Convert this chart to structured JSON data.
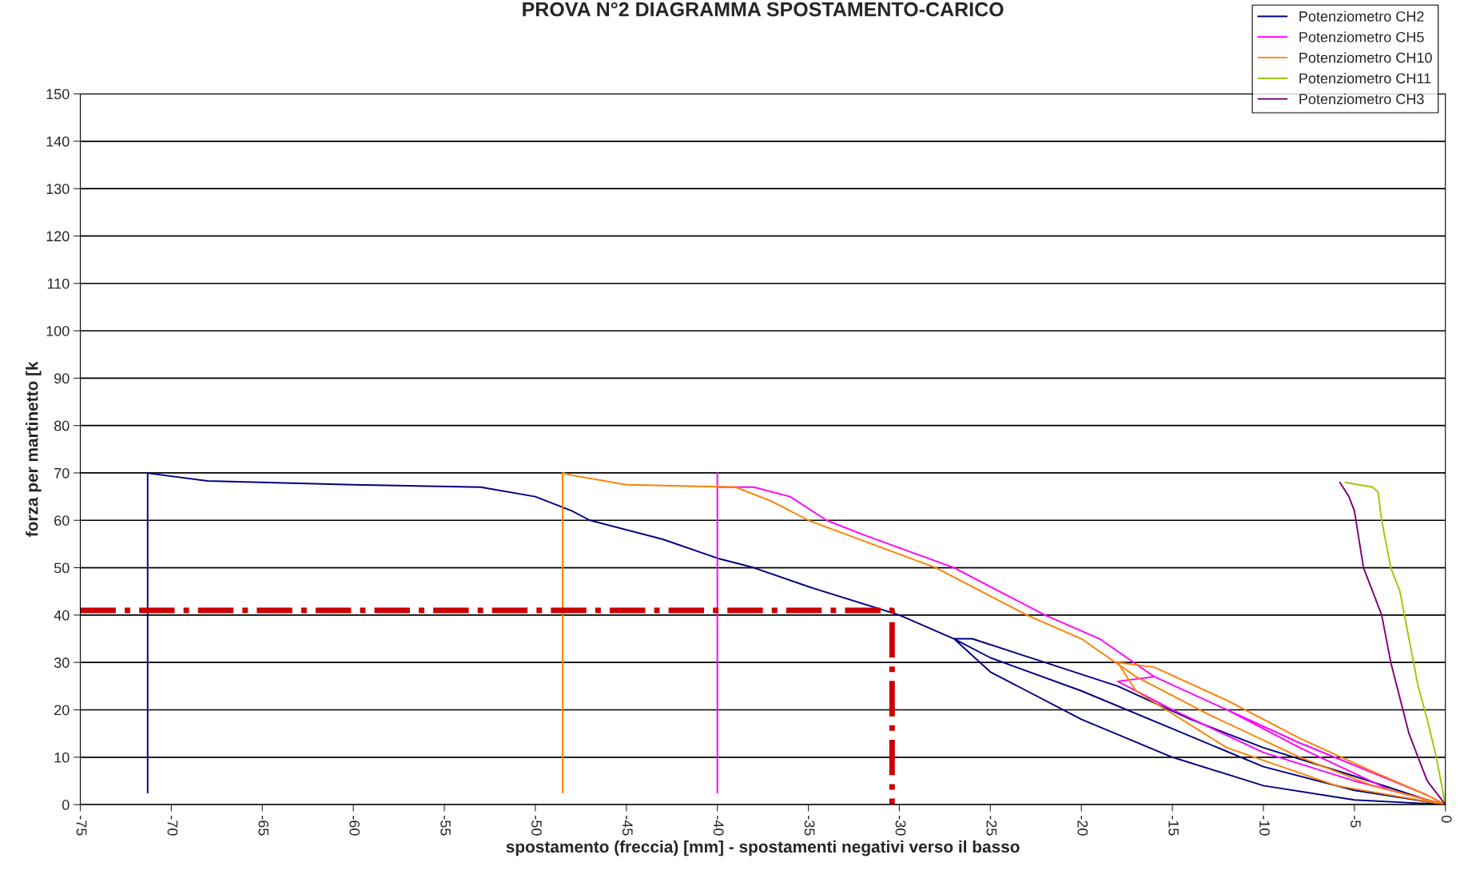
{
  "chart_data": {
    "type": "line",
    "title": "PROVA N°2 DIAGRAMMA SPOSTAMENTO-CARICO",
    "xlabel": "spostamento (freccia) [mm] - spostamenti negativi verso il basso",
    "ylabel": "forza per martinetto [k",
    "xlim": [
      -75,
      0
    ],
    "xticks": [
      -75,
      -70,
      -65,
      -60,
      -55,
      -50,
      -45,
      -40,
      -35,
      -30,
      -25,
      -20,
      -15,
      -10,
      -5,
      0
    ],
    "ylim": [
      0,
      150
    ],
    "yticks": [
      0,
      10,
      20,
      30,
      40,
      50,
      60,
      70,
      80,
      90,
      100,
      110,
      120,
      130,
      140,
      150
    ],
    "grid": "y",
    "legend": "top right",
    "marker": "none",
    "line_style": "solid",
    "series": [
      {
        "name": "Potenziometro CH2",
        "color": "#000080",
        "x": [
          0,
          -5,
          -10,
          -15,
          -20,
          -25,
          -27,
          -26,
          -22,
          -18,
          -14,
          -10,
          -5,
          -1,
          0,
          -5,
          -10,
          -15,
          -20,
          -25,
          -27,
          -30,
          -35,
          -38,
          -40,
          -43,
          -47,
          -48,
          -50,
          -53,
          -60,
          -68,
          -71,
          -71.3,
          -71.3
        ],
        "values": [
          0,
          1,
          4,
          10,
          18,
          28,
          35,
          35,
          30,
          25,
          18,
          12,
          6,
          1,
          0,
          3,
          8,
          16,
          24,
          31,
          35,
          40,
          46,
          50,
          52,
          56,
          60,
          62,
          65,
          67,
          67.5,
          68.3,
          69.8,
          70,
          2.5
        ]
      },
      {
        "name": "Potenziometro CH5",
        "color": "#ff00ff",
        "x": [
          0,
          -5,
          -10,
          -15,
          -18,
          -16,
          -12,
          -8,
          -4,
          -1,
          0,
          -3,
          -8,
          -12,
          -16,
          -19,
          -22,
          -27,
          -32,
          -34,
          -36,
          -38,
          -40,
          -40,
          -40
        ],
        "values": [
          0,
          5,
          11,
          20,
          26,
          27,
          20,
          13,
          null,
          2,
          0,
          3,
          12,
          20,
          27,
          35,
          40,
          50,
          57,
          60,
          65,
          67,
          67,
          70,
          2.5
        ]
      },
      {
        "name": "Potenziometro CH10",
        "color": "#ff8000",
        "x": [
          0,
          -6,
          -12,
          -17,
          -18,
          -16,
          -12,
          -8,
          -4,
          -1,
          0,
          -4,
          -8,
          -13,
          -17,
          -20,
          -23,
          -28,
          -35,
          -37,
          -39,
          -45,
          -48,
          -48.5,
          -48.5
        ],
        "values": [
          0,
          4,
          12,
          24,
          30,
          29,
          22,
          14,
          7,
          2,
          0,
          4,
          10,
          19,
          27,
          35,
          40,
          50,
          60,
          64,
          67,
          67.5,
          69.5,
          70,
          2.5
        ]
      },
      {
        "name": "Potenziometro CH11",
        "color": "#99cc00",
        "x": [
          0,
          -0.5,
          -1,
          -1.5,
          -2,
          -2.5,
          -3,
          -3.5,
          -3.7,
          -4,
          -5.5
        ],
        "values": [
          0,
          10,
          18,
          25,
          35,
          45,
          50,
          60,
          66,
          67,
          68
        ]
      },
      {
        "name": "Potenziometro CH3",
        "color": "#800080",
        "x": [
          0,
          -1,
          -2,
          -3,
          -3.5,
          -4,
          -4.5,
          -5,
          -5.3,
          -5.8
        ],
        "values": [
          0,
          5,
          15,
          30,
          40,
          45,
          50,
          62,
          65,
          68
        ]
      },
      {
        "color": "#cc0000",
        "line_style": "dashdot",
        "x": [
          -75,
          -30.4,
          -30.4
        ],
        "values": [
          41,
          41,
          0
        ]
      }
    ]
  }
}
